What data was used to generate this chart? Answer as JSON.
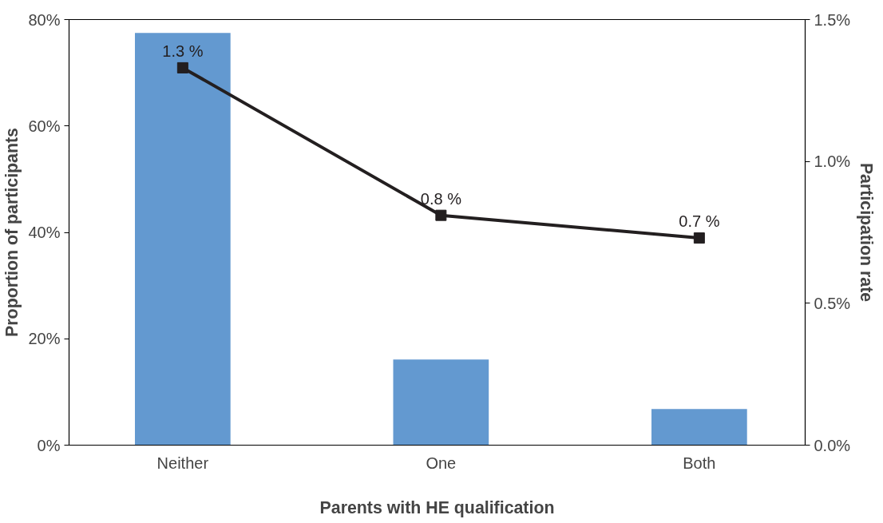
{
  "chart_data": {
    "type": "bar",
    "xlabel": "Parents with HE qualification",
    "ylabel": "Proportion of participants",
    "y2label": "Participation rate",
    "categories": [
      "Neither",
      "One",
      "Both"
    ],
    "series": [
      {
        "color": "#6399d0",
        "values": [
          77.5,
          16.1,
          6.8
        ]
      },
      {
        "type": "line",
        "axis": "y2",
        "color": "#231f20",
        "values": [
          1.33,
          0.81,
          0.73
        ],
        "value_labels": [
          "1.3 %",
          "0.8 %",
          "0.7 %"
        ],
        "marker": "square",
        "line_style": "solid"
      }
    ],
    "ylim": [
      0,
      80
    ],
    "yticks": [
      {
        "value": 0,
        "label": "0%"
      },
      {
        "value": 20,
        "label": "20%"
      },
      {
        "value": 40,
        "label": "40%"
      },
      {
        "value": 60,
        "label": "60%"
      },
      {
        "value": 80,
        "label": "80%"
      }
    ],
    "y2lim": [
      0,
      1.5
    ],
    "y2ticks": [
      {
        "value": 0,
        "label": "0.0%"
      },
      {
        "value": 0.5,
        "label": "0.5%"
      },
      {
        "value": 1.0,
        "label": "1.0%"
      },
      {
        "value": 1.5,
        "label": "1.5%"
      }
    ],
    "grid": false
  }
}
